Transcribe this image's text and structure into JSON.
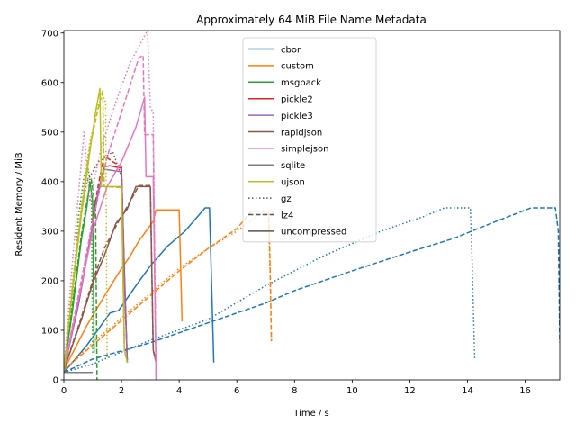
{
  "chart_data": {
    "type": "line",
    "title": "Approximately 64 MiB File Name Metadata",
    "xlabel": "Time / s",
    "ylabel": "Resident Memory / MiB",
    "xlim": [
      0,
      17.2
    ],
    "ylim": [
      0,
      705
    ],
    "xticks": [
      0,
      2,
      4,
      6,
      8,
      10,
      12,
      14,
      16
    ],
    "yticks": [
      0,
      100,
      200,
      300,
      400,
      500,
      600,
      700
    ],
    "grid": false,
    "legend_placement": "top-center",
    "legend": [
      {
        "label": "cbor",
        "color": "#1f77b4",
        "style": "solid"
      },
      {
        "label": "custom",
        "color": "#ff7f0e",
        "style": "solid"
      },
      {
        "label": "msgpack",
        "color": "#2ca02c",
        "style": "solid"
      },
      {
        "label": "pickle2",
        "color": "#d62728",
        "style": "solid"
      },
      {
        "label": "pickle3",
        "color": "#9467bd",
        "style": "solid"
      },
      {
        "label": "rapidjson",
        "color": "#8c564b",
        "style": "solid"
      },
      {
        "label": "simplejson",
        "color": "#e377c2",
        "style": "solid"
      },
      {
        "label": "sqlite",
        "color": "#7f7f7f",
        "style": "solid"
      },
      {
        "label": "ujson",
        "color": "#bcbd22",
        "style": "solid"
      },
      {
        "label": "gz",
        "color": "#555555",
        "style": "dotted"
      },
      {
        "label": "lz4",
        "color": "#555555",
        "style": "dashed"
      },
      {
        "label": "uncompressed",
        "color": "#555555",
        "style": "solid"
      }
    ],
    "series": [
      {
        "color": "#1f77b4",
        "dash": "solid",
        "points": [
          [
            0,
            15
          ],
          [
            0.8,
            70
          ],
          [
            1.6,
            135
          ],
          [
            1.9,
            140
          ],
          [
            2.2,
            165
          ],
          [
            2.5,
            190
          ],
          [
            3.0,
            230
          ],
          [
            3.6,
            270
          ],
          [
            4.2,
            300
          ],
          [
            4.9,
            347
          ],
          [
            5.05,
            347
          ],
          [
            5.2,
            35
          ]
        ]
      },
      {
        "color": "#1f77b4",
        "dash": "dashed",
        "points": [
          [
            0,
            15
          ],
          [
            1,
            42
          ],
          [
            3,
            75
          ],
          [
            5,
            115
          ],
          [
            7,
            155
          ],
          [
            8,
            180
          ],
          [
            10,
            220
          ],
          [
            12,
            258
          ],
          [
            13.5,
            285
          ],
          [
            15,
            320
          ],
          [
            16.2,
            347
          ],
          [
            17.05,
            347
          ],
          [
            17.15,
            300
          ],
          [
            17.2,
            75
          ]
        ]
      },
      {
        "color": "#1f77b4",
        "dash": "dotted",
        "points": [
          [
            0,
            15
          ],
          [
            1,
            32
          ],
          [
            3,
            80
          ],
          [
            5,
            122
          ],
          [
            7,
            190
          ],
          [
            9,
            250
          ],
          [
            11,
            300
          ],
          [
            12.5,
            330
          ],
          [
            13.2,
            347
          ],
          [
            14.1,
            347
          ],
          [
            14.15,
            260
          ],
          [
            14.25,
            40
          ]
        ]
      },
      {
        "color": "#ff7f0e",
        "dash": "solid",
        "points": [
          [
            0,
            20
          ],
          [
            0.8,
            110
          ],
          [
            1.5,
            178
          ],
          [
            2.0,
            225
          ],
          [
            2.3,
            250
          ],
          [
            2.6,
            280
          ],
          [
            3.1,
            320
          ],
          [
            3.2,
            343
          ],
          [
            4.0,
            343
          ],
          [
            4.1,
            118
          ]
        ]
      },
      {
        "color": "#ff7f0e",
        "dash": "dashed",
        "points": [
          [
            0,
            20
          ],
          [
            1,
            70
          ],
          [
            2,
            120
          ],
          [
            3,
            170
          ],
          [
            4,
            220
          ],
          [
            5,
            265
          ],
          [
            6,
            305
          ],
          [
            6.5,
            340
          ],
          [
            7.1,
            340
          ],
          [
            7.15,
            240
          ],
          [
            7.2,
            78
          ]
        ]
      },
      {
        "color": "#ff7f0e",
        "dash": "dotted",
        "points": [
          [
            0,
            20
          ],
          [
            1,
            75
          ],
          [
            2,
            125
          ],
          [
            3,
            175
          ],
          [
            4,
            225
          ],
          [
            5,
            265
          ],
          [
            6,
            300
          ],
          [
            6.8,
            335
          ],
          [
            7.1,
            335
          ],
          [
            7.15,
            220
          ],
          [
            7.2,
            78
          ]
        ]
      },
      {
        "color": "#2ca02c",
        "dash": "solid",
        "points": [
          [
            0,
            20
          ],
          [
            0.3,
            140
          ],
          [
            0.6,
            280
          ],
          [
            0.8,
            350
          ],
          [
            0.9,
            400
          ],
          [
            1.0,
            360
          ],
          [
            1.05,
            55
          ]
        ]
      },
      {
        "color": "#2ca02c",
        "dash": "dashed",
        "points": [
          [
            0,
            20
          ],
          [
            0.3,
            150
          ],
          [
            0.6,
            290
          ],
          [
            0.8,
            360
          ],
          [
            0.95,
            405
          ],
          [
            1.1,
            345
          ],
          [
            1.15,
            0
          ]
        ]
      },
      {
        "color": "#2ca02c",
        "dash": "dotted",
        "points": [
          [
            0,
            20
          ],
          [
            0.3,
            160
          ],
          [
            0.5,
            330
          ],
          [
            0.7,
            410
          ],
          [
            0.85,
            425
          ],
          [
            0.95,
            380
          ],
          [
            1.0,
            50
          ]
        ]
      },
      {
        "color": "#d62728",
        "dash": "solid",
        "points": [
          [
            0,
            20
          ],
          [
            0.5,
            150
          ],
          [
            0.9,
            280
          ],
          [
            1.2,
            380
          ],
          [
            1.4,
            430
          ],
          [
            1.6,
            432
          ],
          [
            2.0,
            427
          ],
          [
            2.1,
            220
          ],
          [
            2.2,
            35
          ]
        ]
      },
      {
        "color": "#d62728",
        "dash": "dashed",
        "points": [
          [
            0,
            20
          ],
          [
            0.5,
            160
          ],
          [
            0.9,
            290
          ],
          [
            1.2,
            395
          ],
          [
            1.4,
            452
          ],
          [
            1.7,
            440
          ],
          [
            2.0,
            430
          ],
          [
            2.1,
            200
          ],
          [
            2.2,
            35
          ]
        ]
      },
      {
        "color": "#9467bd",
        "dash": "solid",
        "points": [
          [
            0,
            20
          ],
          [
            0.5,
            150
          ],
          [
            0.9,
            280
          ],
          [
            1.2,
            385
          ],
          [
            1.4,
            425
          ],
          [
            2.0,
            420
          ],
          [
            2.1,
            200
          ],
          [
            2.2,
            40
          ]
        ]
      },
      {
        "color": "#8c564b",
        "dash": "solid",
        "points": [
          [
            0,
            20
          ],
          [
            0.6,
            120
          ],
          [
            1.0,
            195
          ],
          [
            1.4,
            250
          ],
          [
            1.8,
            315
          ],
          [
            2.2,
            345
          ],
          [
            2.5,
            390
          ],
          [
            3.0,
            390
          ],
          [
            3.1,
            60
          ],
          [
            3.2,
            35
          ]
        ]
      },
      {
        "color": "#8c564b",
        "dash": "dashed",
        "points": [
          [
            0,
            20
          ],
          [
            0.6,
            125
          ],
          [
            1.0,
            200
          ],
          [
            1.4,
            265
          ],
          [
            1.9,
            320
          ],
          [
            2.3,
            360
          ],
          [
            2.6,
            392
          ],
          [
            3.0,
            392
          ],
          [
            3.1,
            60
          ],
          [
            3.2,
            35
          ]
        ]
      },
      {
        "color": "#8c564b",
        "dash": "dotted",
        "points": [
          [
            0,
            20
          ],
          [
            0.2,
            130
          ],
          [
            0.5,
            300
          ],
          [
            0.8,
            400
          ],
          [
            1.2,
            440
          ],
          [
            1.7,
            460
          ],
          [
            2.0,
            410
          ],
          [
            2.1,
            60
          ]
        ]
      },
      {
        "color": "#e377c2",
        "dash": "solid",
        "points": [
          [
            0,
            20
          ],
          [
            0.5,
            160
          ],
          [
            1.0,
            300
          ],
          [
            1.5,
            390
          ],
          [
            2.0,
            440
          ],
          [
            2.5,
            510
          ],
          [
            2.8,
            570
          ],
          [
            2.85,
            410
          ],
          [
            3.1,
            410
          ],
          [
            3.2,
            0
          ]
        ]
      },
      {
        "color": "#e377c2",
        "dash": "dashed",
        "points": [
          [
            0,
            20
          ],
          [
            0.6,
            200
          ],
          [
            1.0,
            320
          ],
          [
            1.5,
            450
          ],
          [
            2.0,
            540
          ],
          [
            2.6,
            650
          ],
          [
            2.75,
            655
          ],
          [
            2.8,
            495
          ],
          [
            3.0,
            495
          ],
          [
            3.1,
            495
          ],
          [
            3.2,
            0
          ]
        ]
      },
      {
        "color": "#e377c2",
        "dash": "dotted",
        "points": [
          [
            0,
            20
          ],
          [
            0.3,
            240
          ],
          [
            0.7,
            500
          ],
          [
            0.9,
            360
          ],
          [
            1.3,
            470
          ],
          [
            1.8,
            560
          ],
          [
            2.3,
            640
          ],
          [
            2.9,
            705
          ],
          [
            3.0,
            550
          ],
          [
            3.1,
            540
          ],
          [
            3.2,
            0
          ]
        ]
      },
      {
        "color": "#7f7f7f",
        "dash": "solid",
        "points": [
          [
            0,
            15
          ],
          [
            0.3,
            15
          ],
          [
            0.6,
            15
          ],
          [
            0.9,
            15
          ],
          [
            1.0,
            15
          ]
        ]
      },
      {
        "color": "#bcbd22",
        "dash": "solid",
        "points": [
          [
            0,
            20
          ],
          [
            0.3,
            180
          ],
          [
            0.6,
            330
          ],
          [
            0.9,
            460
          ],
          [
            1.1,
            540
          ],
          [
            1.25,
            588
          ],
          [
            1.3,
            390
          ],
          [
            2.0,
            390
          ],
          [
            2.1,
            60
          ],
          [
            2.2,
            35
          ]
        ]
      },
      {
        "color": "#bcbd22",
        "dash": "dashed",
        "points": [
          [
            0,
            20
          ],
          [
            0.3,
            190
          ],
          [
            0.6,
            340
          ],
          [
            0.9,
            470
          ],
          [
            1.2,
            550
          ],
          [
            1.35,
            585
          ],
          [
            1.4,
            390
          ],
          [
            2.0,
            388
          ],
          [
            2.1,
            60
          ],
          [
            2.2,
            35
          ]
        ]
      },
      {
        "color": "#bcbd22",
        "dash": "dotted",
        "points": [
          [
            0,
            20
          ],
          [
            0.3,
            200
          ],
          [
            0.6,
            350
          ],
          [
            0.9,
            480
          ],
          [
            1.2,
            555
          ],
          [
            1.35,
            575
          ],
          [
            1.45,
            560
          ],
          [
            1.5,
            40
          ]
        ]
      }
    ]
  }
}
